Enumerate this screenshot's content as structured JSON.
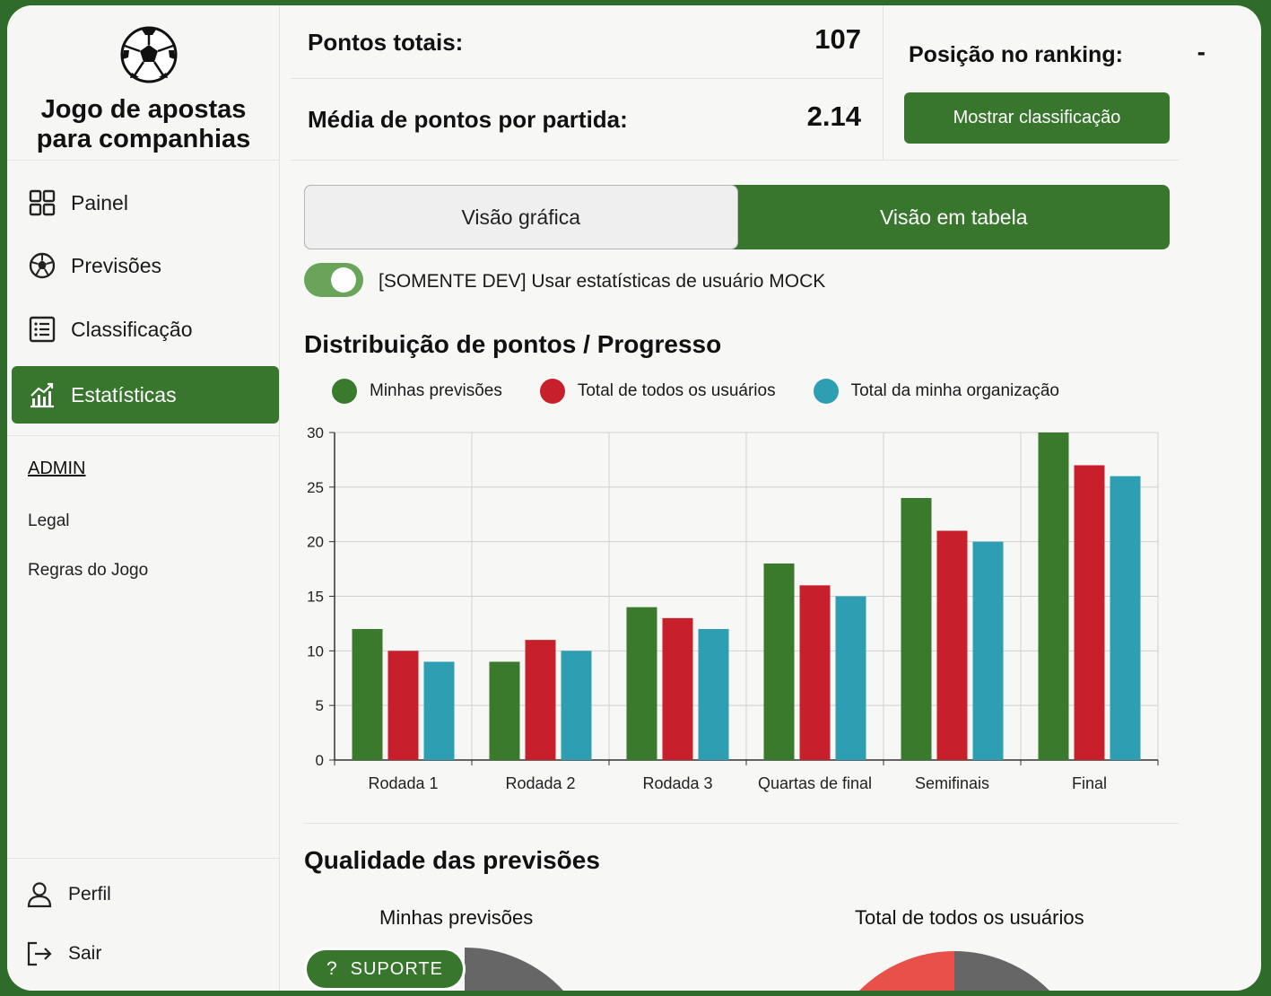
{
  "app": {
    "title_line1": "Jogo de apostas",
    "title_line2": "para companhias",
    "logo_icon": "soccer-ball-icon"
  },
  "sidebar": {
    "items": [
      {
        "label": "Painel",
        "icon": "grid-icon",
        "active": false
      },
      {
        "label": "Previsões",
        "icon": "soccer-ball-icon",
        "active": false
      },
      {
        "label": "Classificação",
        "icon": "list-icon",
        "active": false
      },
      {
        "label": "Estatísticas",
        "icon": "chart-icon",
        "active": true
      }
    ],
    "admin": "ADMIN",
    "links": [
      "Legal",
      "Regras do Jogo"
    ],
    "bottom": [
      {
        "label": "Perfil",
        "icon": "user-icon"
      },
      {
        "label": "Sair",
        "icon": "logout-icon"
      }
    ]
  },
  "stats": {
    "total_points_label": "Pontos totais:",
    "total_points_value": "107",
    "avg_label": "Média de pontos por partida:",
    "avg_value": "2.14",
    "ranking_label": "Posição no ranking:",
    "ranking_value": "-",
    "show_ranking_button": "Mostrar classificação"
  },
  "view_toggle": {
    "graphic": "Visão gráfica",
    "table": "Visão em tabela",
    "selected": "table"
  },
  "dev_toggle": {
    "label": "[SOMENTE DEV] Usar estatísticas de usuário MOCK",
    "on": true
  },
  "distribution": {
    "title": "Distribuição de pontos / Progresso",
    "chart_data": {
      "type": "bar",
      "categories": [
        "Rodada 1",
        "Rodada 2",
        "Rodada 3",
        "Quartas de final",
        "Semifinais",
        "Final"
      ],
      "series": [
        {
          "name": "Minhas previsões",
          "color": "#3a7a2c",
          "values": [
            12,
            9,
            14,
            18,
            24,
            30
          ]
        },
        {
          "name": "Total de todos os usuários",
          "color": "#c8202a",
          "values": [
            10,
            11,
            13,
            16,
            21,
            27
          ]
        },
        {
          "name": "Total da minha organização",
          "color": "#2e9fb2",
          "values": [
            9,
            10,
            12,
            15,
            20,
            26
          ]
        }
      ],
      "yticks": [
        "0",
        "5",
        "10",
        "15",
        "20",
        "25",
        "30"
      ],
      "ylim": [
        0,
        30
      ],
      "grid": true,
      "legend_position": "top"
    }
  },
  "quality": {
    "title": "Qualidade das previsões",
    "mine_title": "Minhas previsões",
    "all_title": "Total de todos os usuários"
  },
  "support": {
    "label": "SUPORTE",
    "icon": "question-icon"
  }
}
